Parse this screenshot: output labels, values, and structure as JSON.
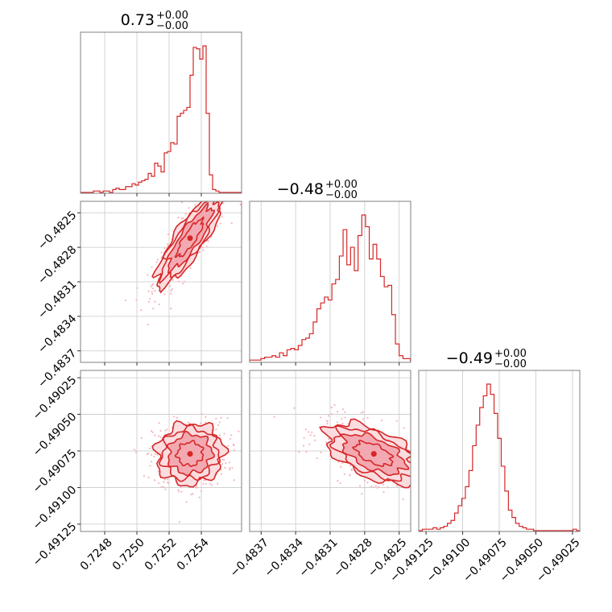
{
  "chart_data": {
    "type": "corner",
    "color": "#d62728",
    "parameters": [
      {
        "title": "0.73",
        "upper_err": "+0.00",
        "lower_err": "−0.00",
        "ticks": [
          0.7248,
          0.725,
          0.7252,
          0.7254
        ],
        "tick_labels": [
          "0.7248",
          "0.7250",
          "0.7252",
          "0.7254"
        ],
        "range": [
          0.72465,
          0.72565
        ],
        "mean": 0.72533,
        "std": 0.0001
      },
      {
        "title": "−0.48",
        "upper_err": "+0.00",
        "lower_err": "−0.00",
        "ticks": [
          -0.4837,
          -0.4834,
          -0.4831,
          -0.4828,
          -0.4825
        ],
        "tick_labels": [
          "−0.4837",
          "−0.4834",
          "−0.4831",
          "−0.4828",
          "−0.4825"
        ],
        "range": [
          -0.4838,
          -0.4824
        ],
        "mean": -0.48272,
        "std": 0.0002
      },
      {
        "title": "−0.49",
        "upper_err": "+0.00",
        "lower_err": "−0.00",
        "ticks": [
          -0.49125,
          -0.491,
          -0.49075,
          -0.4905,
          -0.49025
        ],
        "tick_labels": [
          "−0.49125",
          "−0.49100",
          "−0.49075",
          "−0.49050",
          "−0.49025"
        ],
        "range": [
          -0.4913,
          -0.4902
        ],
        "mean": -0.49077,
        "std": 0.0001
      }
    ],
    "histograms": [
      {
        "parameter": 0,
        "bin_start": 0.72465,
        "bin_width": 2e-05,
        "counts": [
          0,
          0,
          0,
          0,
          1,
          1,
          0,
          1,
          1,
          0,
          2,
          3,
          2,
          2,
          4,
          4,
          6,
          5,
          7,
          8,
          9,
          13,
          11,
          20,
          18,
          14,
          27,
          28,
          34,
          33,
          52,
          54,
          56,
          58,
          80,
          99,
          98,
          91,
          100,
          54,
          12,
          2,
          1,
          0,
          0,
          0,
          0,
          0,
          0,
          0
        ]
      },
      {
        "parameter": 1,
        "bin_start": -0.4838,
        "bin_width": 3.25e-05,
        "counts": [
          1,
          1,
          1,
          2,
          3,
          3,
          4,
          3,
          6,
          4,
          8,
          9,
          8,
          11,
          15,
          16,
          19,
          27,
          36,
          40,
          44,
          42,
          53,
          56,
          72,
          90,
          66,
          78,
          62,
          86,
          100,
          92,
          70,
          80,
          70,
          58,
          51,
          52,
          32,
          12,
          4,
          2,
          2
        ]
      },
      {
        "parameter": 2,
        "bin_start": -0.4913,
        "bin_width": 2.45e-05,
        "counts": [
          0,
          1,
          1,
          1,
          2,
          1,
          2,
          3,
          5,
          7,
          12,
          17,
          22,
          30,
          41,
          58,
          72,
          84,
          92,
          100,
          93,
          80,
          63,
          44,
          27,
          14,
          9,
          5,
          3,
          2,
          1,
          1,
          0,
          0,
          0,
          0,
          0,
          0,
          0,
          0,
          0,
          0,
          0,
          1,
          0
        ]
      }
    ],
    "pairs": [
      {
        "x_param": 0,
        "y_param": 1,
        "correlation": 0.85
      },
      {
        "x_param": 0,
        "y_param": 2,
        "correlation": 0.05
      },
      {
        "x_param": 1,
        "y_param": 2,
        "correlation": -0.55
      }
    ],
    "grid": true
  }
}
